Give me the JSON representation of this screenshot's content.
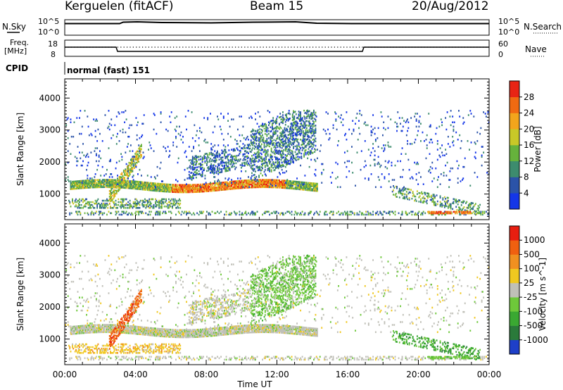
{
  "header": {
    "station": "Kerguelen (fitACF)",
    "beam": "Beam 15",
    "date": "20/Aug/2012"
  },
  "top_panels": {
    "nsky_label": "N.Sky",
    "nsky_ticks": [
      "10^5",
      "10^0"
    ],
    "nsearch_label": "N.Search",
    "nsearch_ticks": [
      "10^5",
      "10^0"
    ],
    "freq_label_1": "Freq.",
    "freq_label_2": "[MHz]",
    "freq_ticks": [
      "18",
      "8"
    ],
    "nave_label": "Nave",
    "nave_ticks": [
      "60",
      "0"
    ],
    "cpid_label": "CPID",
    "cpid_value": "normal (fast) 151"
  },
  "chart_data": [
    {
      "type": "heatmap",
      "name": "power",
      "ylabel": "Slant Range [km]",
      "yticks": [
        "1000",
        "2000",
        "3000",
        "4000"
      ],
      "ylim": [
        200,
        4600
      ],
      "xlim": [
        0,
        24
      ],
      "colorbar_label": "Power [dB]",
      "colorbar_ticks": [
        "4",
        "8",
        "12",
        "16",
        "20",
        "24",
        "28"
      ],
      "colorbar_colors": [
        "#1436e8",
        "#2b53a8",
        "#3d8c6e",
        "#66b23c",
        "#c8c828",
        "#f2a51c",
        "#f06a12",
        "#e82414"
      ],
      "colorbar_range": [
        0,
        32
      ]
    },
    {
      "type": "heatmap",
      "name": "velocity",
      "ylabel": "Slant Range [km]",
      "yticks": [
        "1000",
        "2000",
        "3000",
        "4000"
      ],
      "ylim": [
        200,
        4600
      ],
      "xlim": [
        0,
        24
      ],
      "xticks": [
        "00:00",
        "04:00",
        "08:00",
        "12:00",
        "16:00",
        "20:00",
        "00:00"
      ],
      "xlabel": "Time UT",
      "colorbar_label": "Velocity [m s^-1]",
      "colorbar_ticks": [
        "1000",
        "500",
        "100",
        "25",
        "-25",
        "-100",
        "-500",
        "-1000"
      ],
      "colorbar_colors": [
        "#1e3fc8",
        "#2a7a3a",
        "#3aa832",
        "#6ec83a",
        "#c0c0b8",
        "#f0c820",
        "#f09020",
        "#f06010",
        "#e81e10"
      ]
    }
  ]
}
